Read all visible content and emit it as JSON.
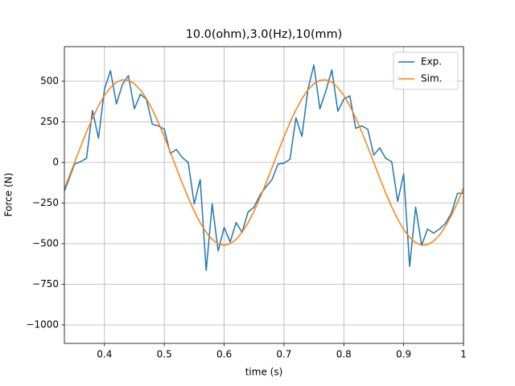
{
  "chart_data": {
    "type": "line",
    "title": "10.0(ohm),3.0(Hz),10(mm)",
    "x_label": "time (s)",
    "y_label": "Force (N)",
    "x": [
      0.333,
      0.34,
      0.35,
      0.36,
      0.37,
      0.38,
      0.39,
      0.4,
      0.41,
      0.42,
      0.43,
      0.44,
      0.45,
      0.46,
      0.47,
      0.48,
      0.49,
      0.5,
      0.51,
      0.52,
      0.53,
      0.54,
      0.55,
      0.56,
      0.57,
      0.58,
      0.59,
      0.6,
      0.61,
      0.62,
      0.63,
      0.64,
      0.65,
      0.66,
      0.67,
      0.68,
      0.69,
      0.7,
      0.71,
      0.72,
      0.73,
      0.74,
      0.75,
      0.76,
      0.77,
      0.78,
      0.79,
      0.8,
      0.81,
      0.82,
      0.83,
      0.84,
      0.85,
      0.86,
      0.87,
      0.88,
      0.89,
      0.9,
      0.91,
      0.92,
      0.93,
      0.94,
      0.95,
      0.96,
      0.97,
      0.98,
      0.99,
      1.0
    ],
    "series": [
      {
        "name": "Exp.",
        "color": "#1f77b4",
        "values": [
          -175,
          -110,
          -10,
          5,
          25,
          320,
          150,
          450,
          565,
          360,
          480,
          535,
          330,
          420,
          390,
          235,
          225,
          205,
          55,
          80,
          30,
          0,
          -255,
          -105,
          -665,
          -255,
          -545,
          -400,
          -490,
          -370,
          -430,
          -305,
          -275,
          -200,
          -150,
          -105,
          -10,
          -5,
          20,
          275,
          160,
          450,
          600,
          330,
          440,
          570,
          315,
          390,
          410,
          210,
          225,
          205,
          45,
          90,
          25,
          5,
          -240,
          -70,
          -640,
          -275,
          -510,
          -410,
          -435,
          -410,
          -375,
          -310,
          -190,
          -190
        ]
      },
      {
        "name": "Sim.",
        "color": "#ff7f0e",
        "values": [
          -161,
          -96,
          0,
          96,
          188,
          273,
          349,
          413,
          461,
          494,
          509,
          506,
          485,
          447,
          393,
          325,
          246,
          158,
          64,
          -32,
          -127,
          -217,
          -300,
          -372,
          -430,
          -474,
          -501,
          -510,
          -501,
          -474,
          -430,
          -372,
          -300,
          -217,
          -127,
          -32,
          64,
          158,
          246,
          325,
          393,
          447,
          485,
          506,
          509,
          494,
          461,
          413,
          349,
          273,
          188,
          96,
          0,
          -96,
          -188,
          -273,
          -349,
          -413,
          -461,
          -494,
          -509,
          -506,
          -485,
          -447,
          -393,
          -325,
          -246,
          -158
        ]
      }
    ],
    "xlim": [
      0.333,
      1.0
    ],
    "ylim": [
      -1114,
      713
    ],
    "xticks": [
      0.4,
      0.5,
      0.6,
      0.7,
      0.8,
      0.9,
      1.0
    ],
    "yticks": [
      {
        "value": -1000,
        "label": "−1000"
      },
      {
        "value": -750,
        "label": "−750"
      },
      {
        "value": -500,
        "label": "−500"
      },
      {
        "value": -250,
        "label": "−250"
      },
      0,
      250,
      500
    ],
    "grid": true,
    "legend": "upper right"
  }
}
